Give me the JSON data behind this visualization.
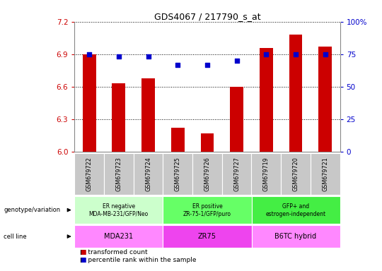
{
  "title": "GDS4067 / 217790_s_at",
  "samples": [
    "GSM679722",
    "GSM679723",
    "GSM679724",
    "GSM679725",
    "GSM679726",
    "GSM679727",
    "GSM679719",
    "GSM679720",
    "GSM679721"
  ],
  "bar_values": [
    6.9,
    6.63,
    6.68,
    6.22,
    6.17,
    6.6,
    6.96,
    7.08,
    6.97
  ],
  "percentile_values": [
    75,
    73,
    73,
    67,
    67,
    70,
    75,
    75,
    75
  ],
  "ylim_left": [
    6.0,
    7.2
  ],
  "ylim_right": [
    0,
    100
  ],
  "yticks_left": [
    6.0,
    6.3,
    6.6,
    6.9,
    7.2
  ],
  "yticks_right": [
    0,
    25,
    50,
    75,
    100
  ],
  "bar_color": "#cc0000",
  "dot_color": "#0000cc",
  "grid_color": "#000000",
  "background_color": "#ffffff",
  "groups": [
    {
      "label": "ER negative\nMDA-MB-231/GFP/Neo",
      "cell_line": "MDA231",
      "start": 0,
      "end": 3,
      "geno_color": "#ccffcc",
      "cell_color": "#ff88ff"
    },
    {
      "label": "ER positive\nZR-75-1/GFP/puro",
      "cell_line": "ZR75",
      "start": 3,
      "end": 6,
      "geno_color": "#66ff66",
      "cell_color": "#ee44ee"
    },
    {
      "label": "GFP+ and\nestrogen-independent",
      "cell_line": "B6TC hybrid",
      "start": 6,
      "end": 9,
      "geno_color": "#44ee44",
      "cell_color": "#ff88ff"
    }
  ],
  "legend_items": [
    {
      "label": "transformed count",
      "color": "#cc0000"
    },
    {
      "label": "percentile rank within the sample",
      "color": "#0000cc"
    }
  ],
  "tick_color_left": "#cc0000",
  "tick_color_right": "#0000cc",
  "sample_bg_color": "#c8c8c8"
}
